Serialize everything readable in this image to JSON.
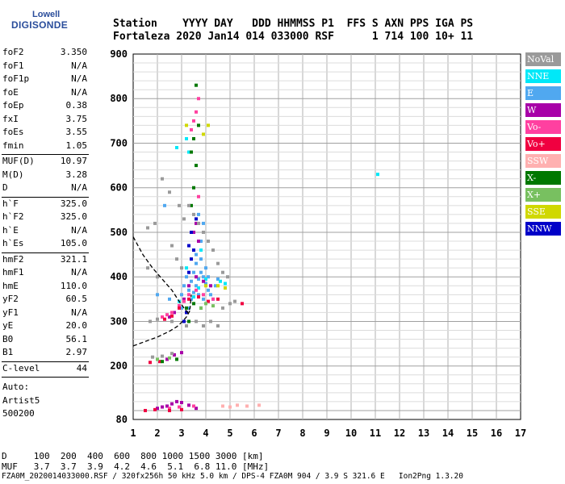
{
  "logo": {
    "top": "Lowell",
    "bottom": "DIGISONDE",
    "color": "#2a4d9b"
  },
  "header": {
    "line1": "Station    YYYY DAY   DDD HHMMSS P1  FFS S AXN PPS IGA PS",
    "line2": "Fortaleza 2020 Jan14 014 033000 RSF      1 714 100 10+ 11"
  },
  "params": {
    "group1": [
      {
        "k": "foF2",
        "v": "3.350"
      },
      {
        "k": "foF1",
        "v": "N/A"
      },
      {
        "k": "foF1p",
        "v": "N/A"
      },
      {
        "k": "foE",
        "v": "N/A"
      },
      {
        "k": "foEp",
        "v": "0.38"
      },
      {
        "k": "fxI",
        "v": "3.75"
      },
      {
        "k": "foEs",
        "v": "3.55"
      },
      {
        "k": "fmin",
        "v": "1.05"
      }
    ],
    "group2": [
      {
        "k": "MUF(D)",
        "v": "10.97"
      },
      {
        "k": "M(D)",
        "v": "3.28"
      },
      {
        "k": "D",
        "v": "N/A"
      }
    ],
    "group3": [
      {
        "k": "h`F",
        "v": "325.0"
      },
      {
        "k": "h`F2",
        "v": "325.0"
      },
      {
        "k": "h`E",
        "v": "N/A"
      },
      {
        "k": "h`Es",
        "v": "105.0"
      }
    ],
    "group4": [
      {
        "k": "hmF2",
        "v": "321.1"
      },
      {
        "k": "hmF1",
        "v": "N/A"
      },
      {
        "k": "hmE",
        "v": "110.0"
      },
      {
        "k": "yF2",
        "v": "60.5"
      },
      {
        "k": "yF1",
        "v": "N/A"
      },
      {
        "k": "yE",
        "v": "20.0"
      },
      {
        "k": "B0",
        "v": "56.1"
      },
      {
        "k": "B1",
        "v": "2.97"
      }
    ],
    "group5": [
      {
        "k": "C-level",
        "v": "44"
      }
    ],
    "auto": [
      "Auto:",
      "Artist5",
      "500200"
    ]
  },
  "legend": [
    {
      "label": "NoVal",
      "color": "#9a9a9a"
    },
    {
      "label": "NNE",
      "color": "#00e8f8"
    },
    {
      "label": "E",
      "color": "#50a8f0"
    },
    {
      "label": "W",
      "color": "#a800a8"
    },
    {
      "label": "Vo-",
      "color": "#ff40a0"
    },
    {
      "label": "Vo+",
      "color": "#f00040"
    },
    {
      "label": "SSW",
      "color": "#ffb0b0"
    },
    {
      "label": "X-",
      "color": "#007800"
    },
    {
      "label": "X+",
      "color": "#78c060"
    },
    {
      "label": "SSE",
      "color": "#d0d800"
    },
    {
      "label": "NNW",
      "color": "#0000c8"
    }
  ],
  "footer": {
    "line1": "D     100  200  400  600  800 1000 1500 3000 [km]",
    "line2": "MUF   3.7  3.7  3.9  4.2  4.6  5.1  6.8 11.0 [MHz]",
    "filename": "FZA0M_2020014033000.RSF / 320fx256h 50 kHz 5.0 km / DPS-4 FZA0M 904 / 3.9 S 321.6 E   Ion2Png 1.3.20"
  },
  "chart_data": {
    "type": "scatter",
    "title": "",
    "xlabel": "",
    "ylabel": "",
    "xlim": [
      1,
      17
    ],
    "ylim": [
      80,
      900
    ],
    "xticks": [
      1,
      2,
      3,
      4,
      5,
      6,
      7,
      8,
      9,
      10,
      11,
      12,
      13,
      14,
      15,
      16,
      17
    ],
    "yticks": [
      80,
      200,
      300,
      400,
      500,
      600,
      700,
      800,
      900
    ],
    "grid": true,
    "series": [
      {
        "legend": "E",
        "points": [
          [
            3.3,
            330
          ],
          [
            3.4,
            350
          ],
          [
            3.5,
            365
          ],
          [
            3.6,
            380
          ],
          [
            3.7,
            395
          ],
          [
            3.8,
            410
          ],
          [
            3.9,
            400
          ],
          [
            4.0,
            385
          ],
          [
            4.1,
            370
          ],
          [
            4.2,
            360
          ],
          [
            4.3,
            350
          ],
          [
            3.5,
            410
          ],
          [
            3.6,
            430
          ],
          [
            3.8,
            440
          ],
          [
            4.0,
            420
          ],
          [
            3.7,
            360
          ],
          [
            3.9,
            350
          ],
          [
            4.1,
            400
          ],
          [
            3.4,
            390
          ],
          [
            3.3,
            370
          ],
          [
            4.4,
            380
          ],
          [
            4.5,
            395
          ],
          [
            3.6,
            450
          ],
          [
            3.8,
            480
          ],
          [
            3.9,
            520
          ],
          [
            3.7,
            540
          ],
          [
            2.3,
            560
          ],
          [
            3.0,
            360
          ],
          [
            3.1,
            380
          ],
          [
            3.2,
            400
          ],
          [
            2.0,
            360
          ],
          [
            2.5,
            350
          ],
          [
            3.0,
            330
          ]
        ]
      },
      {
        "legend": "NNE",
        "points": [
          [
            3.5,
            355
          ],
          [
            3.7,
            375
          ],
          [
            4.0,
            395
          ],
          [
            4.6,
            390
          ],
          [
            4.8,
            385
          ],
          [
            2.9,
            345
          ],
          [
            3.2,
            420
          ],
          [
            3.8,
            460
          ],
          [
            11.1,
            630
          ],
          [
            2.8,
            690
          ],
          [
            3.2,
            710
          ],
          [
            3.3,
            680
          ]
        ]
      },
      {
        "legend": "W",
        "points": [
          [
            2.5,
            310
          ],
          [
            2.7,
            320
          ],
          [
            2.9,
            335
          ],
          [
            3.1,
            350
          ],
          [
            3.3,
            380
          ],
          [
            3.6,
            400
          ],
          [
            3.9,
            390
          ],
          [
            4.2,
            380
          ],
          [
            3.5,
            500
          ],
          [
            3.6,
            520
          ],
          [
            3.7,
            480
          ],
          [
            2.4,
            215
          ],
          [
            2.7,
            225
          ],
          [
            3.0,
            230
          ],
          [
            2.4,
            110
          ],
          [
            2.6,
            115
          ],
          [
            2.8,
            120
          ],
          [
            3.0,
            118
          ],
          [
            3.3,
            112
          ],
          [
            3.6,
            105
          ],
          [
            2.0,
            105
          ],
          [
            2.2,
            108
          ]
        ]
      },
      {
        "legend": "Vo-",
        "points": [
          [
            2.2,
            310
          ],
          [
            2.4,
            315
          ],
          [
            2.6,
            320
          ],
          [
            2.9,
            335
          ],
          [
            3.1,
            345
          ],
          [
            3.3,
            360
          ],
          [
            3.6,
            370
          ],
          [
            3.9,
            360
          ],
          [
            4.3,
            350
          ],
          [
            3.7,
            800
          ],
          [
            3.6,
            770
          ],
          [
            3.5,
            750
          ],
          [
            3.4,
            730
          ],
          [
            3.7,
            580
          ],
          [
            2.5,
            105
          ],
          [
            2.9,
            108
          ],
          [
            3.5,
            110
          ]
        ]
      },
      {
        "legend": "Vo+",
        "points": [
          [
            2.3,
            305
          ],
          [
            2.6,
            312
          ],
          [
            2.9,
            330
          ],
          [
            3.3,
            350
          ],
          [
            3.7,
            355
          ],
          [
            4.1,
            345
          ],
          [
            4.5,
            350
          ],
          [
            5.5,
            340
          ],
          [
            1.7,
            208
          ],
          [
            2.1,
            210
          ],
          [
            1.5,
            100
          ],
          [
            1.9,
            102
          ],
          [
            2.5,
            100
          ],
          [
            3.0,
            102
          ]
        ]
      },
      {
        "legend": "X-",
        "points": [
          [
            3.4,
            560
          ],
          [
            3.5,
            600
          ],
          [
            3.6,
            650
          ],
          [
            3.4,
            680
          ],
          [
            3.5,
            710
          ],
          [
            3.7,
            740
          ],
          [
            3.6,
            830
          ],
          [
            3.3,
            300
          ],
          [
            3.2,
            330
          ],
          [
            3.5,
            340
          ],
          [
            3.8,
            330
          ],
          [
            2.2,
            210
          ],
          [
            2.8,
            215
          ]
        ]
      },
      {
        "legend": "X+",
        "points": [
          [
            3.8,
            330
          ],
          [
            4.0,
            340
          ],
          [
            4.3,
            335
          ],
          [
            2.0,
            215
          ],
          [
            2.5,
            218
          ]
        ]
      },
      {
        "legend": "SSE",
        "points": [
          [
            4.0,
            380
          ],
          [
            4.5,
            380
          ],
          [
            4.8,
            375
          ],
          [
            3.9,
            720
          ],
          [
            4.1,
            740
          ],
          [
            3.2,
            740
          ]
        ]
      },
      {
        "legend": "NNW",
        "points": [
          [
            3.3,
            410
          ],
          [
            3.4,
            440
          ],
          [
            3.5,
            460
          ],
          [
            3.3,
            470
          ],
          [
            3.4,
            500
          ],
          [
            3.6,
            530
          ],
          [
            3.1,
            300
          ],
          [
            3.2,
            320
          ]
        ]
      },
      {
        "legend": "NoVal",
        "points": [
          [
            1.6,
            510
          ],
          [
            1.9,
            520
          ],
          [
            2.2,
            620
          ],
          [
            2.5,
            590
          ],
          [
            2.9,
            560
          ],
          [
            3.1,
            530
          ],
          [
            3.3,
            560
          ],
          [
            3.5,
            540
          ],
          [
            3.7,
            520
          ],
          [
            3.9,
            500
          ],
          [
            4.1,
            480
          ],
          [
            4.3,
            460
          ],
          [
            4.5,
            430
          ],
          [
            4.7,
            410
          ],
          [
            4.9,
            400
          ],
          [
            2.6,
            470
          ],
          [
            2.8,
            440
          ],
          [
            3.0,
            420
          ],
          [
            1.7,
            300
          ],
          [
            2.0,
            305
          ],
          [
            2.6,
            300
          ],
          [
            3.2,
            290
          ],
          [
            3.6,
            300
          ],
          [
            3.9,
            290
          ],
          [
            4.2,
            300
          ],
          [
            4.5,
            290
          ],
          [
            4.7,
            330
          ],
          [
            5.0,
            340
          ],
          [
            5.2,
            345
          ],
          [
            1.8,
            220
          ],
          [
            2.2,
            222
          ],
          [
            2.6,
            228
          ],
          [
            1.6,
            420
          ],
          [
            2.0,
            400
          ]
        ]
      },
      {
        "legend": "SSW",
        "points": [
          [
            4.7,
            110
          ],
          [
            5.0,
            108
          ],
          [
            5.3,
            112
          ],
          [
            5.7,
            110
          ],
          [
            6.2,
            112
          ]
        ]
      }
    ],
    "profile_curve": [
      [
        1.0,
        490
      ],
      [
        1.4,
        450
      ],
      [
        1.8,
        420
      ],
      [
        2.2,
        395
      ],
      [
        2.6,
        370
      ],
      [
        2.9,
        345
      ],
      [
        3.1,
        330
      ],
      [
        3.25,
        320
      ],
      [
        3.35,
        330
      ],
      [
        3.4,
        360
      ]
    ],
    "lower_curve": [
      [
        1.0,
        245
      ],
      [
        1.5,
        255
      ],
      [
        2.0,
        265
      ],
      [
        2.5,
        278
      ],
      [
        2.8,
        288
      ],
      [
        3.0,
        298
      ],
      [
        3.2,
        310
      ],
      [
        3.35,
        325
      ]
    ]
  }
}
